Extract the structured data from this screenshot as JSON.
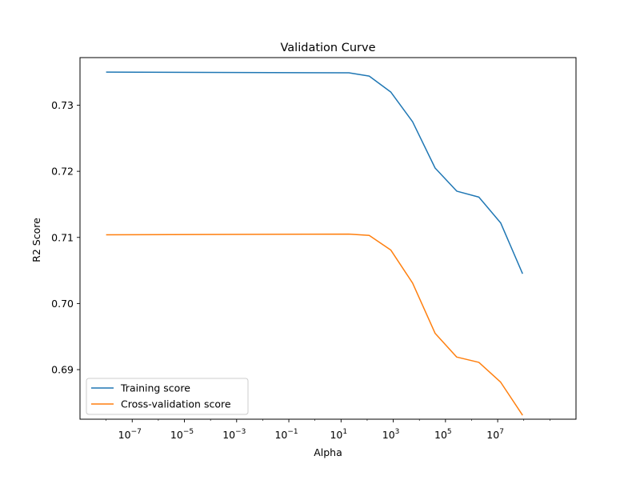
{
  "chart_data": {
    "type": "line",
    "title": "Validation Curve",
    "xlabel": "Alpha",
    "ylabel": "R2 Score",
    "xscale": "log",
    "xlim": [
      1e-09,
      10000000000.0
    ],
    "ylim": [
      0.6825,
      0.7372
    ],
    "grid": false,
    "legend_position": "lower-left",
    "x_ticks": [
      {
        "value": 1e-07,
        "base": "10",
        "exp": "−7"
      },
      {
        "value": 1e-05,
        "base": "10",
        "exp": "−5"
      },
      {
        "value": 0.001,
        "base": "10",
        "exp": "−3"
      },
      {
        "value": 0.1,
        "base": "10",
        "exp": "−1"
      },
      {
        "value": 10.0,
        "base": "10",
        "exp": "1"
      },
      {
        "value": 1000.0,
        "base": "10",
        "exp": "3"
      },
      {
        "value": 100000.0,
        "base": "10",
        "exp": "5"
      },
      {
        "value": 10000000.0,
        "base": "10",
        "exp": "7"
      }
    ],
    "y_ticks": [
      {
        "value": 0.69,
        "label": "0.69"
      },
      {
        "value": 0.7,
        "label": "0.70"
      },
      {
        "value": 0.71,
        "label": "0.71"
      },
      {
        "value": 0.72,
        "label": "0.72"
      },
      {
        "value": 0.73,
        "label": "0.73"
      }
    ],
    "x": [
      1e-08,
      20.0,
      120.0,
      800.0,
      5500.0,
      40000.0,
      270000.0,
      1900000.0,
      13000000.0,
      90000000.0
    ],
    "series": [
      {
        "name": "Training score",
        "color": "#1f77b4",
        "values": [
          0.735,
          0.7349,
          0.7344,
          0.732,
          0.7275,
          0.7205,
          0.717,
          0.7161,
          0.7122,
          0.7045
        ]
      },
      {
        "name": "Cross-validation score",
        "color": "#ff7f0e",
        "values": [
          0.7104,
          0.7105,
          0.7103,
          0.7081,
          0.7031,
          0.6955,
          0.6919,
          0.6911,
          0.6881,
          0.6831
        ]
      }
    ]
  }
}
